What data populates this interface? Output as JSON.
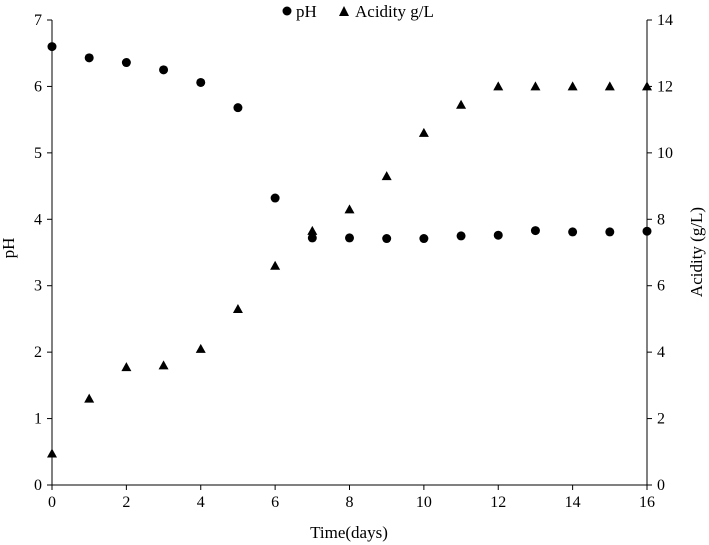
{
  "chart_data": {
    "type": "scatter",
    "title": "",
    "xlabel": "Time(days)",
    "ylabel_left": "pH",
    "ylabel_right": "Acidity (g/L)",
    "xlim": [
      0,
      16
    ],
    "ylim_left": [
      0,
      7
    ],
    "ylim_right": [
      0,
      14
    ],
    "x_ticks": [
      "0",
      "2",
      "4",
      "6",
      "8",
      "10",
      "12",
      "14",
      "16"
    ],
    "y_left_ticks": [
      "0",
      "1",
      "2",
      "3",
      "4",
      "5",
      "6",
      "7"
    ],
    "y_right_ticks": [
      "0",
      "2",
      "4",
      "6",
      "8",
      "10",
      "12",
      "14"
    ],
    "grid": false,
    "legend_position": "top",
    "x": [
      0,
      1,
      2,
      3,
      4,
      5,
      6,
      7,
      8,
      9,
      10,
      11,
      12,
      13,
      14,
      15,
      16
    ],
    "series": [
      {
        "name": "pH",
        "marker": "circle",
        "axis": "left",
        "color": "#000000",
        "values": [
          6.6,
          6.43,
          6.36,
          6.25,
          6.06,
          5.68,
          4.32,
          3.72,
          3.72,
          3.71,
          3.71,
          3.75,
          3.76,
          3.83,
          3.81,
          3.81,
          3.82
        ]
      },
      {
        "name": "Acidity g/L",
        "marker": "triangle",
        "axis": "right",
        "color": "#000000",
        "values": [
          0.95,
          2.6,
          3.55,
          3.6,
          4.1,
          5.3,
          6.6,
          7.65,
          8.3,
          9.3,
          10.6,
          11.45,
          12.0,
          12.0,
          12.0,
          12.0,
          12.0
        ]
      }
    ]
  }
}
